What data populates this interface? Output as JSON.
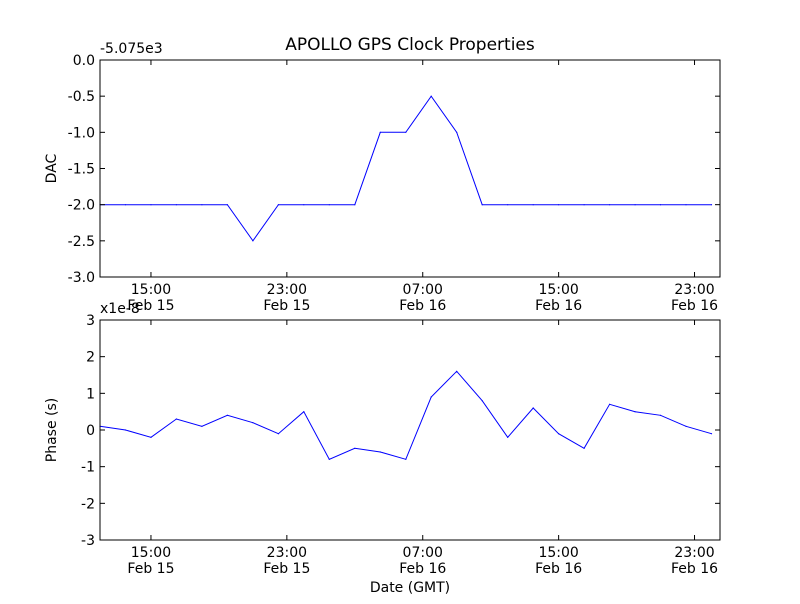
{
  "figure": {
    "title": "APOLLO GPS Clock Properties"
  },
  "chart_data": [
    {
      "type": "line",
      "ylabel": "DAC",
      "offset_label": "-5.075e3",
      "ylim": [
        -3.0,
        0.0
      ],
      "xlim": [
        "2011-02-15T12:00",
        "2011-02-17T00:30"
      ],
      "yticks": [
        "0.0",
        "-0.5",
        "-1.0",
        "-1.5",
        "-2.0",
        "-2.5",
        "-3.0"
      ],
      "ytick_values": [
        0.0,
        -0.5,
        -1.0,
        -1.5,
        -2.0,
        -2.5,
        -3.0
      ],
      "xticks": [
        {
          "t": "2011-02-15T15:00",
          "time": "15:00",
          "date": "Feb 15"
        },
        {
          "t": "2011-02-15T23:00",
          "time": "23:00",
          "date": "Feb 15"
        },
        {
          "t": "2011-02-16T07:00",
          "time": "07:00",
          "date": "Feb 16"
        },
        {
          "t": "2011-02-16T15:00",
          "time": "15:00",
          "date": "Feb 16"
        },
        {
          "t": "2011-02-16T23:00",
          "time": "23:00",
          "date": "Feb 16"
        }
      ],
      "series": [
        {
          "color": "#0000ff",
          "x": [
            "2011-02-15T12:00",
            "2011-02-15T13:30",
            "2011-02-15T15:00",
            "2011-02-15T16:30",
            "2011-02-15T18:00",
            "2011-02-15T19:30",
            "2011-02-15T21:00",
            "2011-02-15T22:30",
            "2011-02-16T00:00",
            "2011-02-16T01:30",
            "2011-02-16T03:00",
            "2011-02-16T04:30",
            "2011-02-16T06:00",
            "2011-02-16T07:30",
            "2011-02-16T09:00",
            "2011-02-16T10:30",
            "2011-02-16T12:00",
            "2011-02-16T13:30",
            "2011-02-16T15:00",
            "2011-02-16T16:30",
            "2011-02-16T18:00",
            "2011-02-16T19:30",
            "2011-02-16T21:00",
            "2011-02-16T22:30",
            "2011-02-17T00:00"
          ],
          "y": [
            -2.0,
            -2.0,
            -2.0,
            -2.0,
            -2.0,
            -2.0,
            -2.5,
            -2.0,
            -2.0,
            -2.0,
            -2.0,
            -1.0,
            -1.0,
            -0.5,
            -1.0,
            -2.0,
            -2.0,
            -2.0,
            -2.0,
            -2.0,
            -2.0,
            -2.0,
            -2.0,
            -2.0,
            -2.0
          ]
        }
      ]
    },
    {
      "type": "line",
      "ylabel": "Phase (s)",
      "xlabel": "Date (GMT)",
      "offset_label": "x1e-8",
      "ylim": [
        -3,
        3
      ],
      "xlim": [
        "2011-02-15T12:00",
        "2011-02-17T00:30"
      ],
      "yticks": [
        "3",
        "2",
        "1",
        "0",
        "-1",
        "-2",
        "-3"
      ],
      "ytick_values": [
        3,
        2,
        1,
        0,
        -1,
        -2,
        -3
      ],
      "xticks": [
        {
          "t": "2011-02-15T15:00",
          "time": "15:00",
          "date": "Feb 15"
        },
        {
          "t": "2011-02-15T23:00",
          "time": "23:00",
          "date": "Feb 15"
        },
        {
          "t": "2011-02-16T07:00",
          "time": "07:00",
          "date": "Feb 16"
        },
        {
          "t": "2011-02-16T15:00",
          "time": "15:00",
          "date": "Feb 16"
        },
        {
          "t": "2011-02-16T23:00",
          "time": "23:00",
          "date": "Feb 16"
        }
      ],
      "series": [
        {
          "color": "#0000ff",
          "x": [
            "2011-02-15T12:00",
            "2011-02-15T13:30",
            "2011-02-15T15:00",
            "2011-02-15T16:30",
            "2011-02-15T18:00",
            "2011-02-15T19:30",
            "2011-02-15T21:00",
            "2011-02-15T22:30",
            "2011-02-16T00:00",
            "2011-02-16T01:30",
            "2011-02-16T03:00",
            "2011-02-16T04:30",
            "2011-02-16T06:00",
            "2011-02-16T07:30",
            "2011-02-16T09:00",
            "2011-02-16T10:30",
            "2011-02-16T12:00",
            "2011-02-16T13:30",
            "2011-02-16T15:00",
            "2011-02-16T16:30",
            "2011-02-16T18:00",
            "2011-02-16T19:30",
            "2011-02-16T21:00",
            "2011-02-16T22:30",
            "2011-02-17T00:00"
          ],
          "y": [
            0.1,
            0.0,
            -0.2,
            0.3,
            0.1,
            0.4,
            0.2,
            -0.1,
            0.5,
            -0.8,
            -0.5,
            -0.6,
            -0.8,
            0.9,
            1.6,
            0.8,
            -0.2,
            0.6,
            -0.1,
            -0.5,
            0.7,
            0.5,
            0.4,
            0.1,
            -0.1
          ]
        }
      ]
    }
  ]
}
